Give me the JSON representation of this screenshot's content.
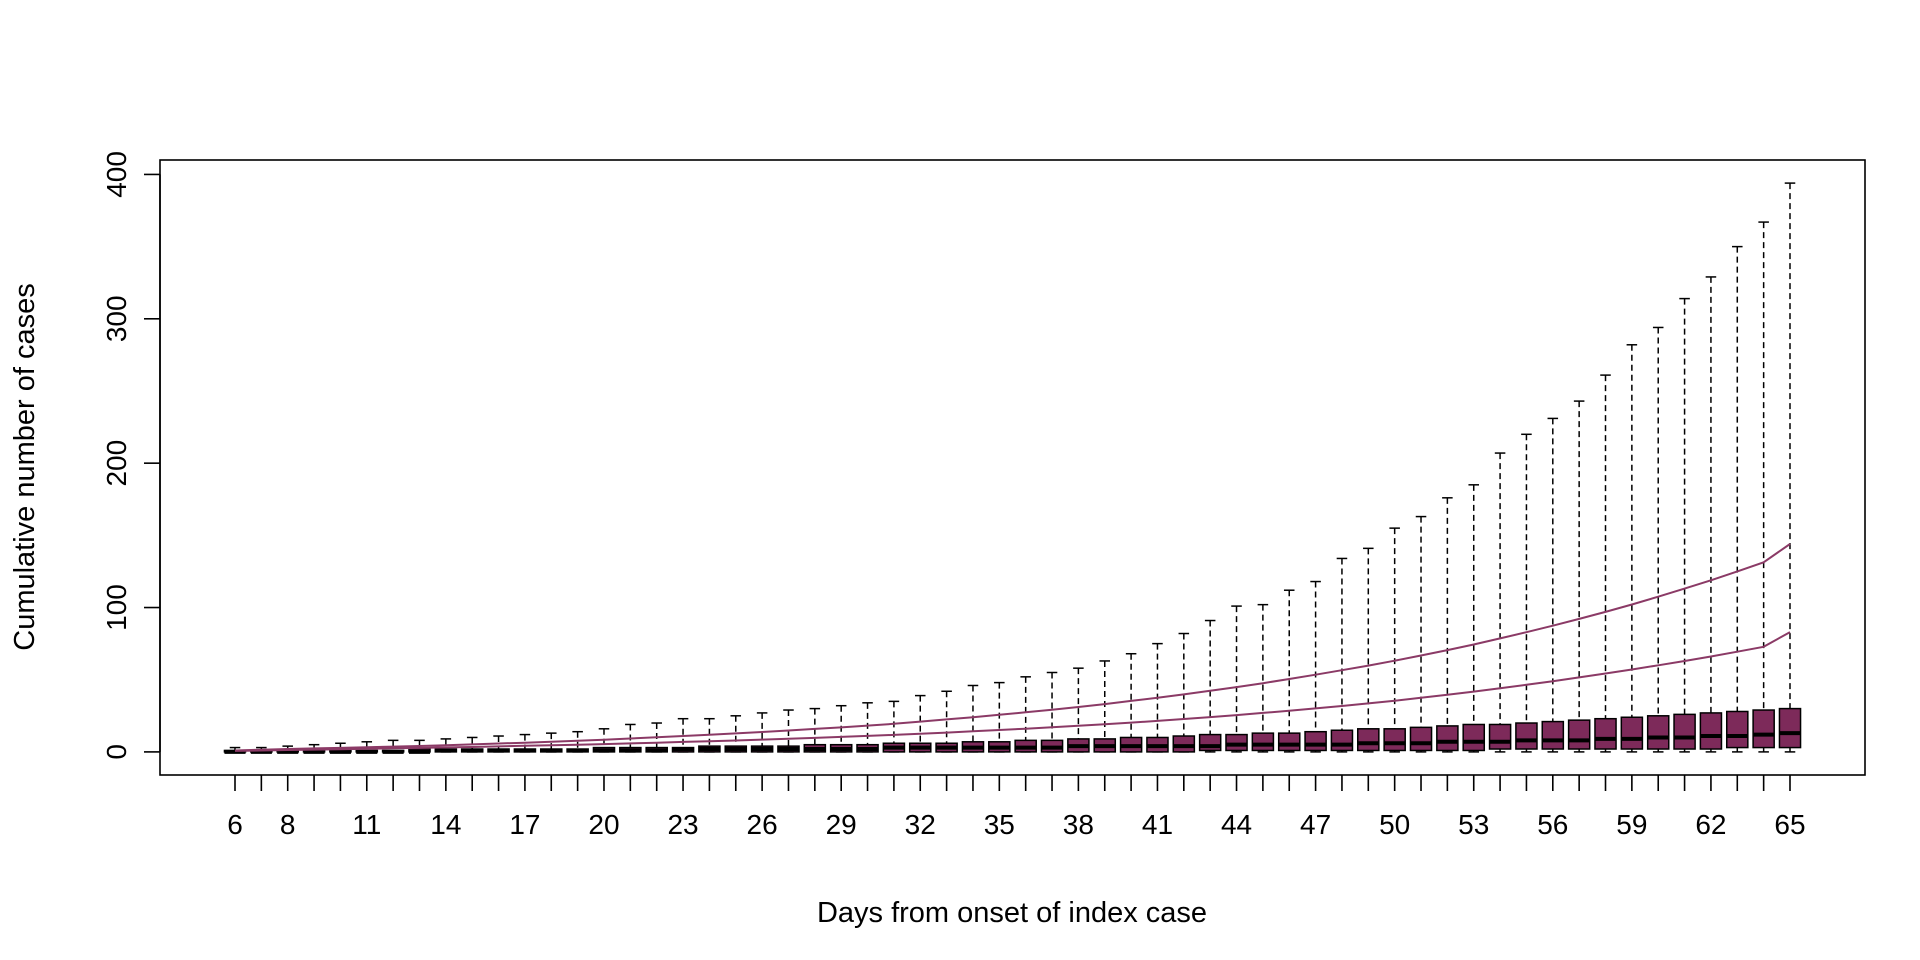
{
  "chart_data": {
    "type": "box",
    "title": "",
    "xlabel": "Days from onset of index case",
    "ylabel": "Cumulative number of cases",
    "ylim": [
      -16,
      410
    ],
    "y_ticks": [
      0,
      100,
      200,
      300,
      400
    ],
    "x_tick_labels": [
      "6",
      "8",
      "11",
      "14",
      "17",
      "20",
      "23",
      "26",
      "29",
      "32",
      "35",
      "38",
      "41",
      "44",
      "47",
      "50",
      "53",
      "56",
      "59",
      "62",
      "65"
    ],
    "days": [
      6,
      7,
      8,
      9,
      10,
      11,
      12,
      13,
      14,
      15,
      16,
      17,
      18,
      19,
      20,
      21,
      22,
      23,
      24,
      25,
      26,
      27,
      28,
      29,
      30,
      31,
      32,
      33,
      34,
      35,
      36,
      37,
      38,
      39,
      40,
      41,
      42,
      43,
      44,
      45,
      46,
      47,
      48,
      49,
      50,
      51,
      52,
      53,
      54,
      55,
      56,
      57,
      58,
      59,
      60,
      61,
      62,
      63,
      64,
      65
    ],
    "whisker_max": [
      3,
      3,
      4,
      5,
      6,
      7,
      8,
      8,
      9,
      10,
      11,
      12,
      13,
      14,
      16,
      19,
      20,
      23,
      23,
      25,
      27,
      29,
      30,
      32,
      34,
      35,
      39,
      42,
      46,
      48,
      52,
      55,
      58,
      63,
      68,
      75,
      82,
      91,
      101,
      102,
      112,
      118,
      134,
      141,
      155,
      163,
      176,
      185,
      207,
      220,
      231,
      243,
      261,
      282,
      294,
      314,
      329,
      350,
      367,
      394
    ],
    "q3": [
      1,
      1,
      1,
      1,
      1,
      1,
      1,
      2,
      2,
      2,
      2,
      2,
      2,
      2,
      3,
      3,
      3,
      3,
      4,
      4,
      4,
      4,
      5,
      5,
      5,
      6,
      6,
      6,
      7,
      7,
      8,
      8,
      9,
      9,
      10,
      10,
      11,
      12,
      12,
      13,
      13,
      14,
      15,
      16,
      16,
      17,
      18,
      19,
      19,
      20,
      21,
      22,
      23,
      24,
      25,
      26,
      27,
      28,
      29,
      30
    ],
    "median": [
      0,
      0,
      0,
      0,
      0,
      0,
      0,
      0,
      1,
      1,
      1,
      1,
      1,
      1,
      1,
      1,
      1,
      2,
      2,
      2,
      2,
      2,
      2,
      2,
      2,
      3,
      3,
      3,
      3,
      3,
      3,
      3,
      4,
      4,
      4,
      4,
      4,
      4,
      5,
      5,
      5,
      5,
      5,
      6,
      6,
      6,
      7,
      7,
      7,
      8,
      8,
      8,
      9,
      9,
      10,
      10,
      11,
      11,
      12,
      13
    ],
    "q1": [
      0,
      0,
      0,
      0,
      0,
      0,
      0,
      0,
      0,
      0,
      0,
      0,
      0,
      0,
      0,
      0,
      0,
      0,
      0,
      0,
      0,
      0,
      0,
      0,
      0,
      0,
      0,
      0,
      0,
      0,
      0,
      0,
      0,
      0,
      0,
      0,
      0,
      1,
      1,
      1,
      1,
      1,
      1,
      1,
      1,
      1,
      1,
      1,
      2,
      2,
      2,
      2,
      2,
      2,
      2,
      2,
      2,
      3,
      3,
      3
    ],
    "whisker_min": [
      0,
      0,
      0,
      0,
      0,
      0,
      0,
      0,
      0,
      0,
      0,
      0,
      0,
      0,
      0,
      0,
      0,
      0,
      0,
      0,
      0,
      0,
      0,
      0,
      0,
      0,
      0,
      0,
      0,
      0,
      0,
      0,
      0,
      0,
      0,
      0,
      0,
      0,
      0,
      0,
      0,
      0,
      0,
      0,
      0,
      0,
      0,
      0,
      0,
      0,
      0,
      0,
      0,
      0,
      0,
      0,
      0,
      0,
      0,
      0
    ],
    "series": [
      {
        "values": [
          1,
          1.5,
          2,
          2.4,
          2.8,
          3.2,
          3.7,
          4.1,
          4.6,
          5.2,
          5.8,
          6.4,
          7,
          7.7,
          8.4,
          9.3,
          10.1,
          11,
          11.9,
          12.8,
          13.8,
          14.8,
          15.9,
          17,
          18.2,
          19.5,
          21,
          22.5,
          24,
          25.7,
          27.4,
          29.2,
          31.1,
          33.1,
          35.3,
          37.5,
          39.8,
          42.3,
          44.9,
          47.6,
          50.5,
          53.5,
          56.6,
          59.8,
          63.2,
          66.8,
          70.5,
          74.4,
          78.6,
          82.9,
          87.4,
          92.1,
          97,
          102.1,
          107.5,
          113.1,
          118.9,
          125,
          131.3,
          144
        ]
      },
      {
        "values": [
          0.7,
          1,
          1.3,
          1.6,
          1.9,
          2.2,
          2.5,
          2.8,
          3.1,
          3.4,
          3.8,
          4.2,
          4.6,
          5,
          5.4,
          5.9,
          6.4,
          6.9,
          7.4,
          7.9,
          8.5,
          9.1,
          9.7,
          10.4,
          11.1,
          11.8,
          12.6,
          13.4,
          14.3,
          15.2,
          16.1,
          17.1,
          18.1,
          19.2,
          20.3,
          21.5,
          22.8,
          24.1,
          25.5,
          27,
          28.5,
          30.1,
          31.8,
          33.6,
          35.5,
          37.5,
          39.6,
          41.8,
          44.1,
          46.5,
          49,
          51.6,
          54.3,
          57.1,
          60,
          63,
          66.1,
          69.4,
          72.8,
          83
        ]
      }
    ],
    "colors": {
      "box_fill": "#7d2a5a",
      "line": "#8b3a66",
      "ink": "#000000"
    }
  }
}
